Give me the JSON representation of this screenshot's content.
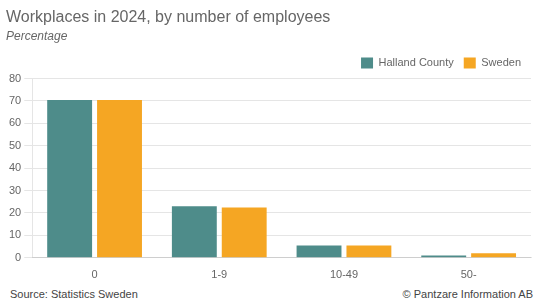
{
  "chart_data": {
    "type": "bar",
    "title": "Workplaces in 2024, by number of employees",
    "subtitle": "Percentage",
    "categories": [
      "0",
      "1-9",
      "10-49",
      "50-"
    ],
    "series": [
      {
        "name": "Halland County",
        "color": "#4e8c8a",
        "values": [
          70.5,
          23.0,
          5.5,
          1.0
        ]
      },
      {
        "name": "Sweden",
        "color": "#f5a623",
        "values": [
          70.5,
          22.5,
          5.5,
          2.0
        ]
      }
    ],
    "ylim": [
      0,
      80
    ],
    "yticks": [
      0,
      10,
      20,
      30,
      40,
      50,
      60,
      70,
      80
    ],
    "grid": true,
    "legend": "upper right",
    "annotations": [
      "Source: Statistics Sweden",
      "© Pantzare Information AB"
    ]
  }
}
